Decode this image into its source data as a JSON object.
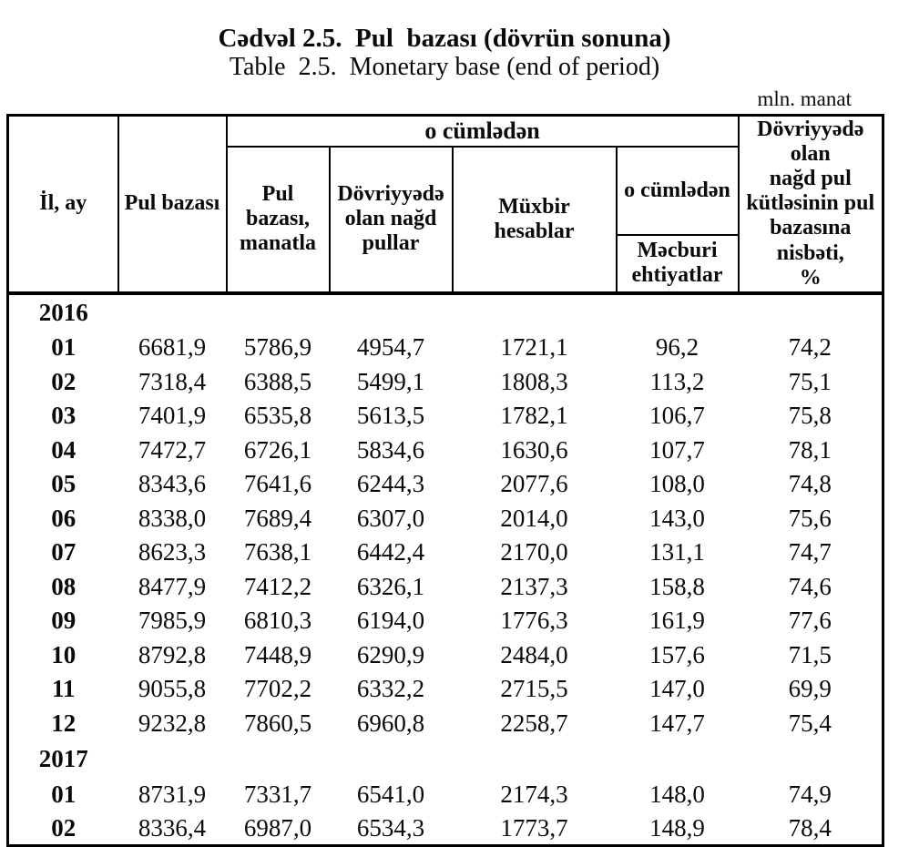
{
  "title": {
    "line1_az": "Cədvəl 2.5.  Pul  bazası (dövrün sonuna)",
    "line2_en": "Table  2.5.  Monetary base (end of period)"
  },
  "unit_label": "mln. manat",
  "table": {
    "headers": {
      "col_year_month": "İl, ay",
      "col_monetary_base": "Pul bazası",
      "group_including": "o cümlədən",
      "col_base_manat": "Pul  bazası,\nmanatla",
      "col_cash_in_circulation": "Dövriyyədə\nolan nağd\npullar",
      "col_correspondent_accounts": "Müxbir\nhesablar",
      "sub_including": "o cümlədən",
      "col_required_reserves": "Məcburi\nehtiyatlar",
      "col_cash_to_base_ratio": "Dövriyyədə olan\nnağd pul\nkütləsinin pul\nbazasına nisbəti,\n%"
    },
    "rows": [
      {
        "type": "year",
        "label": "2016",
        "values": [
          "",
          "",
          "",
          "",
          "",
          ""
        ]
      },
      {
        "type": "month",
        "label": "01",
        "values": [
          "6681,9",
          "5786,9",
          "4954,7",
          "1721,1",
          "96,2",
          "74,2"
        ]
      },
      {
        "type": "month",
        "label": "02",
        "values": [
          "7318,4",
          "6388,5",
          "5499,1",
          "1808,3",
          "113,2",
          "75,1"
        ]
      },
      {
        "type": "month",
        "label": "03",
        "values": [
          "7401,9",
          "6535,8",
          "5613,5",
          "1782,1",
          "106,7",
          "75,8"
        ]
      },
      {
        "type": "month",
        "label": "04",
        "values": [
          "7472,7",
          "6726,1",
          "5834,6",
          "1630,6",
          "107,7",
          "78,1"
        ]
      },
      {
        "type": "month",
        "label": "05",
        "values": [
          "8343,6",
          "7641,6",
          "6244,3",
          "2077,6",
          "108,0",
          "74,8"
        ]
      },
      {
        "type": "month",
        "label": "06",
        "values": [
          "8338,0",
          "7689,4",
          "6307,0",
          "2014,0",
          "143,0",
          "75,6"
        ]
      },
      {
        "type": "month",
        "label": "07",
        "values": [
          "8623,3",
          "7638,1",
          "6442,4",
          "2170,0",
          "131,1",
          "74,7"
        ]
      },
      {
        "type": "month",
        "label": "08",
        "values": [
          "8477,9",
          "7412,2",
          "6326,1",
          "2137,3",
          "158,8",
          "74,6"
        ]
      },
      {
        "type": "month",
        "label": "09",
        "values": [
          "7985,9",
          "6810,3",
          "6194,0",
          "1776,3",
          "161,9",
          "77,6"
        ]
      },
      {
        "type": "month",
        "label": "10",
        "values": [
          "8792,8",
          "7448,9",
          "6290,9",
          "2484,0",
          "157,6",
          "71,5"
        ]
      },
      {
        "type": "month",
        "label": "11",
        "values": [
          "9055,8",
          "7702,2",
          "6332,2",
          "2715,5",
          "147,0",
          "69,9"
        ]
      },
      {
        "type": "month",
        "label": "12",
        "values": [
          "9232,8",
          "7860,5",
          "6960,8",
          "2258,7",
          "147,7",
          "75,4"
        ]
      },
      {
        "type": "year",
        "label": "2017",
        "values": [
          "",
          "",
          "",
          "",
          "",
          ""
        ]
      },
      {
        "type": "month",
        "label": "01",
        "values": [
          "8731,9",
          "7331,7",
          "6541,0",
          "2174,3",
          "148,0",
          "74,9"
        ]
      },
      {
        "type": "month",
        "label": "02",
        "values": [
          "8336,4",
          "6987,0",
          "6534,3",
          "1773,7",
          "148,9",
          "78,4"
        ]
      }
    ]
  }
}
